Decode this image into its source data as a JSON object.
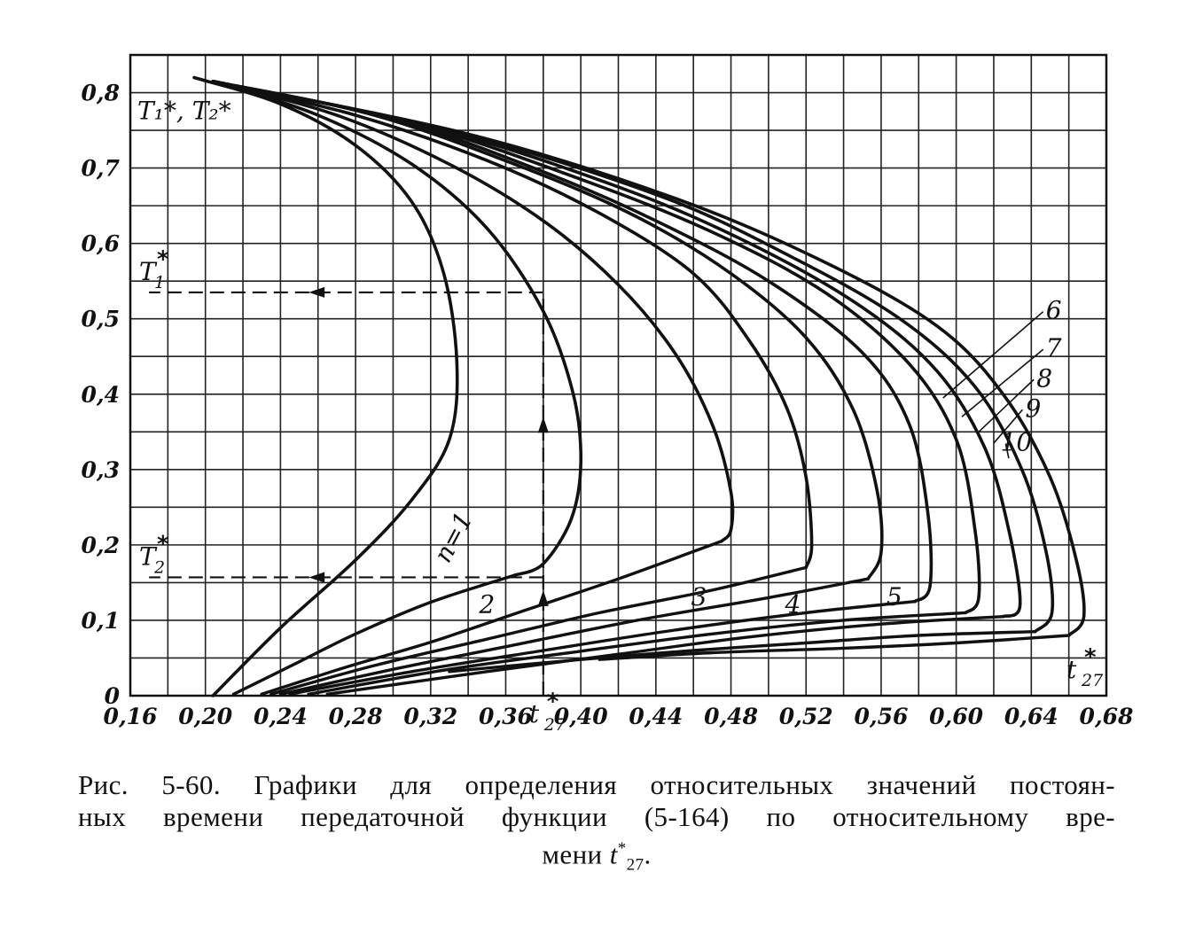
{
  "chart_data": {
    "type": "line",
    "xlim": [
      0.16,
      0.68
    ],
    "ylim": [
      0,
      0.85
    ],
    "grid": true,
    "x_ticks": [
      "0,16",
      "0,20",
      "0,24",
      "0,28",
      "0,32",
      "0,36",
      "0,40",
      "0,44",
      "0,48",
      "0,52",
      "0,56",
      "0,60",
      "0,64",
      "0,68"
    ],
    "x_tick_values": [
      0.16,
      0.2,
      0.24,
      0.28,
      0.32,
      0.36,
      0.4,
      0.44,
      0.48,
      0.52,
      0.56,
      0.6,
      0.64,
      0.68
    ],
    "y_ticks": [
      "0",
      "0,1",
      "0,2",
      "0,3",
      "0,4",
      "0,5",
      "0,6",
      "0,7",
      "0,8"
    ],
    "y_tick_values": [
      0,
      0.1,
      0.2,
      0.3,
      0.4,
      0.5,
      0.6,
      0.7,
      0.8
    ],
    "axis_markers": {
      "x_inline": {
        "label": "t",
        "sup": "*",
        "sub": "27",
        "x": 0.38
      },
      "x_end": {
        "label": "t",
        "sup": "*",
        "sub": "27"
      },
      "y_top": {
        "text": "T₁*, T₂*"
      },
      "y_t1": {
        "label": "T",
        "sub": "1",
        "sup": "*",
        "y": 0.535
      },
      "y_t2": {
        "label": "T",
        "sub": "2",
        "sup": "*",
        "y": 0.157
      }
    },
    "example": {
      "t27": 0.38,
      "T1": 0.535,
      "T2": 0.157,
      "curve": "2"
    },
    "series": [
      {
        "name": "n=1",
        "upper": [
          [
            0.194,
            0.82
          ],
          [
            0.24,
            0.785
          ],
          [
            0.28,
            0.73
          ],
          [
            0.31,
            0.655
          ],
          [
            0.327,
            0.56
          ],
          [
            0.334,
            0.44
          ],
          [
            0.33,
            0.34
          ],
          [
            0.31,
            0.26
          ],
          [
            0.28,
            0.18
          ],
          [
            0.24,
            0.09
          ],
          [
            0.204,
            0.0
          ]
        ],
        "lower": []
      },
      {
        "name": "2",
        "upper": [
          [
            0.204,
            0.815
          ],
          [
            0.26,
            0.77
          ],
          [
            0.31,
            0.705
          ],
          [
            0.35,
            0.62
          ],
          [
            0.38,
            0.51
          ],
          [
            0.396,
            0.4
          ],
          [
            0.4,
            0.31
          ],
          [
            0.395,
            0.235
          ],
          [
            0.38,
            0.175
          ],
          [
            0.365,
            0.16
          ]
        ],
        "lower": [
          [
            0.365,
            0.16
          ],
          [
            0.32,
            0.124
          ],
          [
            0.28,
            0.082
          ],
          [
            0.25,
            0.045
          ],
          [
            0.215,
            0.002
          ]
        ]
      },
      {
        "name": "3",
        "upper": [
          [
            0.204,
            0.815
          ],
          [
            0.27,
            0.77
          ],
          [
            0.33,
            0.705
          ],
          [
            0.38,
            0.63
          ],
          [
            0.42,
            0.545
          ],
          [
            0.45,
            0.455
          ],
          [
            0.47,
            0.36
          ],
          [
            0.48,
            0.27
          ],
          [
            0.48,
            0.22
          ],
          [
            0.475,
            0.205
          ]
        ],
        "lower": [
          [
            0.475,
            0.205
          ],
          [
            0.42,
            0.155
          ],
          [
            0.37,
            0.113
          ],
          [
            0.32,
            0.071
          ],
          [
            0.275,
            0.038
          ],
          [
            0.23,
            0.002
          ]
        ]
      },
      {
        "name": "4",
        "upper": [
          [
            0.204,
            0.815
          ],
          [
            0.28,
            0.77
          ],
          [
            0.35,
            0.71
          ],
          [
            0.41,
            0.64
          ],
          [
            0.46,
            0.56
          ],
          [
            0.49,
            0.47
          ],
          [
            0.51,
            0.38
          ],
          [
            0.52,
            0.29
          ],
          [
            0.523,
            0.2
          ],
          [
            0.52,
            0.17
          ]
        ],
        "lower": [
          [
            0.52,
            0.17
          ],
          [
            0.47,
            0.14
          ],
          [
            0.41,
            0.11
          ],
          [
            0.35,
            0.075
          ],
          [
            0.29,
            0.04
          ],
          [
            0.235,
            0.002
          ]
        ]
      },
      {
        "name": "5",
        "upper": [
          [
            0.204,
            0.815
          ],
          [
            0.29,
            0.77
          ],
          [
            0.37,
            0.7
          ],
          [
            0.43,
            0.635
          ],
          [
            0.48,
            0.56
          ],
          [
            0.52,
            0.475
          ],
          [
            0.545,
            0.38
          ],
          [
            0.558,
            0.27
          ],
          [
            0.56,
            0.19
          ],
          [
            0.553,
            0.155
          ]
        ],
        "lower": [
          [
            0.553,
            0.155
          ],
          [
            0.5,
            0.13
          ],
          [
            0.43,
            0.1
          ],
          [
            0.36,
            0.065
          ],
          [
            0.3,
            0.035
          ],
          [
            0.24,
            0.002
          ]
        ]
      },
      {
        "name": "6",
        "upper": [
          [
            0.204,
            0.815
          ],
          [
            0.3,
            0.765
          ],
          [
            0.38,
            0.695
          ],
          [
            0.44,
            0.63
          ],
          [
            0.5,
            0.55
          ],
          [
            0.55,
            0.455
          ],
          [
            0.575,
            0.36
          ],
          [
            0.585,
            0.24
          ],
          [
            0.586,
            0.145
          ],
          [
            0.578,
            0.125
          ]
        ],
        "lower": [
          [
            0.578,
            0.125
          ],
          [
            0.52,
            0.11
          ],
          [
            0.45,
            0.087
          ],
          [
            0.38,
            0.06
          ],
          [
            0.31,
            0.032
          ],
          [
            0.245,
            0.002
          ]
        ]
      },
      {
        "name": "7",
        "upper": [
          [
            0.204,
            0.815
          ],
          [
            0.31,
            0.76
          ],
          [
            0.4,
            0.685
          ],
          [
            0.47,
            0.615
          ],
          [
            0.53,
            0.535
          ],
          [
            0.575,
            0.44
          ],
          [
            0.6,
            0.34
          ],
          [
            0.61,
            0.22
          ],
          [
            0.612,
            0.13
          ],
          [
            0.605,
            0.11
          ]
        ],
        "lower": [
          [
            0.605,
            0.11
          ],
          [
            0.54,
            0.1
          ],
          [
            0.47,
            0.082
          ],
          [
            0.4,
            0.059
          ],
          [
            0.33,
            0.035
          ],
          [
            0.255,
            0.002
          ]
        ]
      },
      {
        "name": "8",
        "upper": [
          [
            0.204,
            0.815
          ],
          [
            0.32,
            0.755
          ],
          [
            0.42,
            0.675
          ],
          [
            0.49,
            0.6
          ],
          [
            0.55,
            0.515
          ],
          [
            0.59,
            0.43
          ],
          [
            0.615,
            0.33
          ],
          [
            0.628,
            0.22
          ],
          [
            0.634,
            0.12
          ],
          [
            0.625,
            0.105
          ]
        ],
        "lower": [
          [
            0.625,
            0.105
          ],
          [
            0.56,
            0.095
          ],
          [
            0.49,
            0.078
          ],
          [
            0.42,
            0.055
          ],
          [
            0.35,
            0.032
          ],
          [
            0.265,
            0.002
          ]
        ]
      },
      {
        "name": "9",
        "upper": [
          [
            0.204,
            0.815
          ],
          [
            0.33,
            0.75
          ],
          [
            0.44,
            0.665
          ],
          [
            0.51,
            0.585
          ],
          [
            0.57,
            0.5
          ],
          [
            0.61,
            0.41
          ],
          [
            0.635,
            0.3
          ],
          [
            0.648,
            0.19
          ],
          [
            0.651,
            0.11
          ],
          [
            0.642,
            0.085
          ]
        ],
        "lower": [
          [
            0.642,
            0.085
          ],
          [
            0.58,
            0.08
          ],
          [
            0.52,
            0.07
          ],
          [
            0.46,
            0.06
          ],
          [
            0.4,
            0.048
          ],
          [
            0.33,
            0.032
          ]
        ]
      },
      {
        "name": "10",
        "upper": [
          [
            0.204,
            0.815
          ],
          [
            0.34,
            0.745
          ],
          [
            0.45,
            0.66
          ],
          [
            0.53,
            0.575
          ],
          [
            0.59,
            0.49
          ],
          [
            0.625,
            0.4
          ],
          [
            0.65,
            0.29
          ],
          [
            0.664,
            0.18
          ],
          [
            0.668,
            0.105
          ],
          [
            0.66,
            0.08
          ]
        ],
        "lower": [
          [
            0.66,
            0.08
          ],
          [
            0.6,
            0.07
          ],
          [
            0.54,
            0.063
          ],
          [
            0.47,
            0.057
          ],
          [
            0.41,
            0.048
          ]
        ]
      }
    ],
    "curve_labels": [
      {
        "text": "n=1",
        "x": 0.336,
        "y": 0.205,
        "rotate": -62
      },
      {
        "text": "2",
        "x": 0.35,
        "y": 0.11
      },
      {
        "text": "3",
        "x": 0.463,
        "y": 0.12
      },
      {
        "text": "4",
        "x": 0.513,
        "y": 0.11
      },
      {
        "text": "5",
        "x": 0.567,
        "y": 0.12
      },
      {
        "text": "6",
        "x": 0.652,
        "y": 0.5
      },
      {
        "text": "7",
        "x": 0.652,
        "y": 0.45
      },
      {
        "text": "8",
        "x": 0.647,
        "y": 0.41
      },
      {
        "text": "9",
        "x": 0.641,
        "y": 0.37
      },
      {
        "text": "10",
        "x": 0.632,
        "y": 0.325
      }
    ]
  },
  "caption": {
    "line1": "Рис. 5-60. Графики для определения относительных значений постоян-",
    "line2": "ных времени передаточной функции (5-164) по относительному вре-",
    "line3_text": "мени ",
    "line3_var": "t",
    "line3_sup": "*",
    "line3_sub": "27",
    "line3_end": "."
  }
}
